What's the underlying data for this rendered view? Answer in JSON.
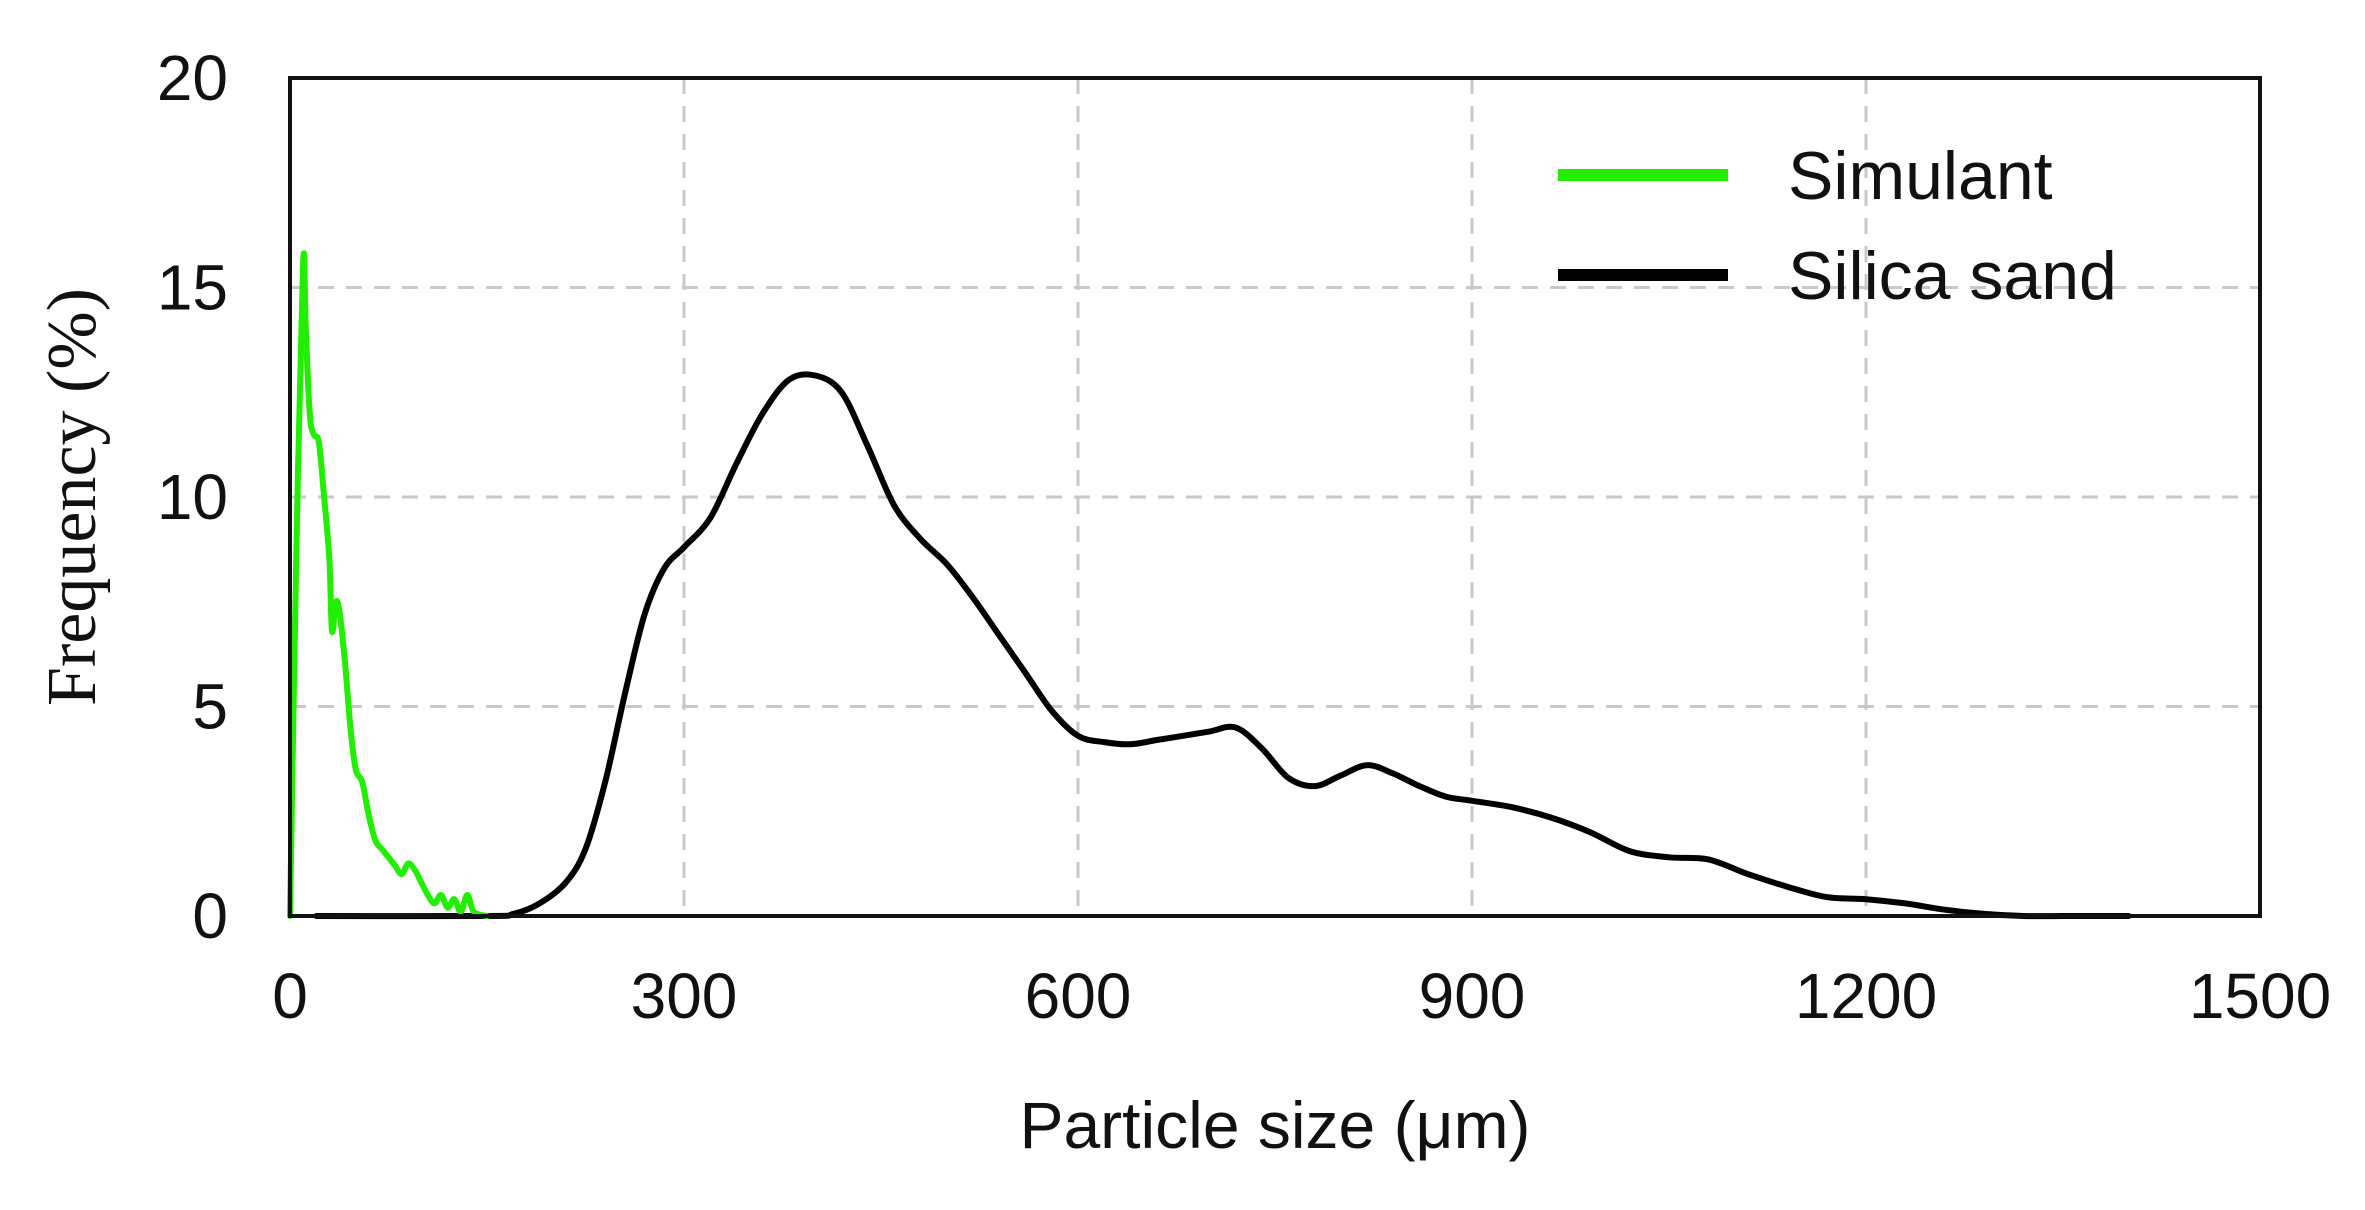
{
  "chart_data": {
    "type": "line",
    "title": "",
    "xlabel": "Particle size (μm)",
    "ylabel": "Frequency (%)",
    "xlim": [
      0,
      1500
    ],
    "ylim": [
      0,
      20
    ],
    "xticks": [
      0,
      300,
      600,
      900,
      1200,
      1500
    ],
    "yticks": [
      0,
      5,
      10,
      15,
      20
    ],
    "grid": true,
    "legend_position": "top-right",
    "series": [
      {
        "name": "Simulant",
        "color": "#22ee00",
        "x": [
          0,
          5,
          10,
          12,
          15,
          18,
          22,
          26,
          30,
          32,
          35,
          38,
          42,
          46,
          50,
          55,
          60,
          65,
          70,
          75,
          80,
          85,
          90,
          95,
          100,
          105,
          110,
          115,
          120,
          125,
          130,
          135,
          140,
          150
        ],
        "y": [
          0,
          9,
          15.6,
          14,
          12,
          11.5,
          11.3,
          10,
          8.5,
          6.8,
          7.5,
          7.2,
          6,
          4.5,
          3.5,
          3.2,
          2.4,
          1.8,
          1.6,
          1.4,
          1.2,
          1.0,
          1.25,
          1.1,
          0.8,
          0.5,
          0.3,
          0.5,
          0.2,
          0.4,
          0.1,
          0.5,
          0.1,
          0
        ]
      },
      {
        "name": "Silica sand",
        "color": "#000000",
        "x": [
          20,
          150,
          170,
          190,
          210,
          225,
          240,
          255,
          270,
          285,
          300,
          320,
          340,
          360,
          380,
          400,
          420,
          440,
          460,
          480,
          500,
          520,
          540,
          560,
          580,
          600,
          620,
          640,
          660,
          680,
          700,
          720,
          740,
          760,
          780,
          800,
          820,
          840,
          860,
          880,
          900,
          930,
          960,
          990,
          1020,
          1050,
          1080,
          1110,
          1140,
          1170,
          1200,
          1230,
          1260,
          1290,
          1320,
          1350,
          1380,
          1400
        ],
        "y": [
          0,
          0,
          0.05,
          0.3,
          0.8,
          1.6,
          3.2,
          5.3,
          7.2,
          8.3,
          8.8,
          9.5,
          10.8,
          12.0,
          12.8,
          12.9,
          12.5,
          11.2,
          9.8,
          9.0,
          8.4,
          7.6,
          6.7,
          5.8,
          4.9,
          4.3,
          4.15,
          4.1,
          4.2,
          4.3,
          4.4,
          4.5,
          4.0,
          3.3,
          3.1,
          3.35,
          3.6,
          3.4,
          3.1,
          2.85,
          2.75,
          2.6,
          2.35,
          2.0,
          1.55,
          1.4,
          1.35,
          1.0,
          0.7,
          0.45,
          0.4,
          0.3,
          0.15,
          0.05,
          0,
          0,
          0,
          0
        ]
      }
    ]
  }
}
